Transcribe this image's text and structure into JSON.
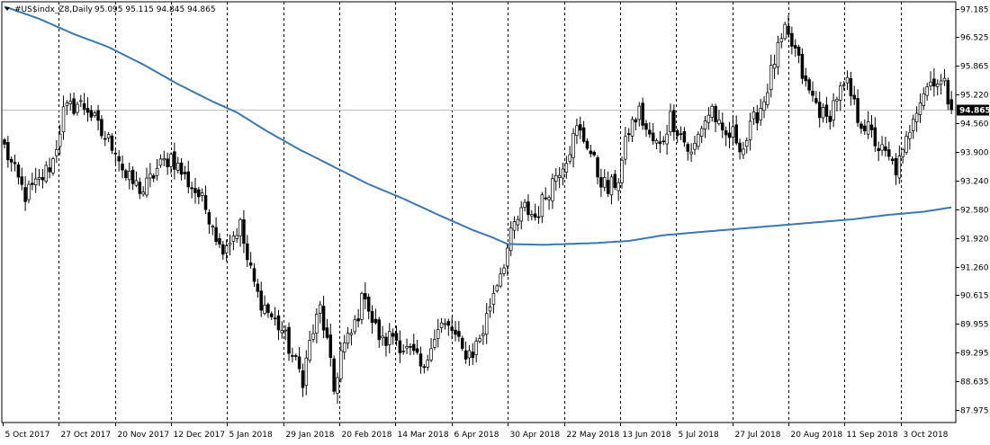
{
  "colors": {
    "background": "#ffffff",
    "axis": "#000000",
    "grid": "#000000",
    "candle": "#000000",
    "moving_average": "#3c78b4",
    "price_line": "#c0c0c0",
    "price_tag": "#000000"
  },
  "header": {
    "symbol": "#US$indx_Z8,Daily",
    "ohlc": "95.095 95.115 94.845 94.865",
    "menu_icon": "triangle-down-icon"
  },
  "chart_data": {
    "type": "candlestick",
    "ylim": [
      87.68,
      97.34
    ],
    "y_ticks": [
      "97.185",
      "96.525",
      "95.865",
      "95.220",
      "94.560",
      "93.900",
      "93.240",
      "92.580",
      "91.920",
      "91.260",
      "90.615",
      "89.955",
      "89.295",
      "88.635",
      "87.975"
    ],
    "current_price": "94.865",
    "x_ticks": [
      "5 Oct 2017",
      "27 Oct 2017",
      "20 Nov 2017",
      "12 Dec 2017",
      "5 Jan 2018",
      "29 Jan 2018",
      "20 Feb 2018",
      "14 Mar 2018",
      "6 Apr 2018",
      "30 Apr 2018",
      "22 May 2018",
      "13 Jun 2018",
      "5 Jul 2018",
      "27 Jul 2018",
      "20 Aug 2018",
      "11 Sep 2018",
      "3 Oct 2018"
    ],
    "close_anchors": [
      [
        0,
        94.0
      ],
      [
        3,
        93.4
      ],
      [
        6,
        92.9
      ],
      [
        10,
        93.2
      ],
      [
        14,
        93.7
      ],
      [
        17,
        94.8
      ],
      [
        21,
        95.0
      ],
      [
        24,
        94.9
      ],
      [
        28,
        94.3
      ],
      [
        32,
        94.0
      ],
      [
        35,
        93.3
      ],
      [
        40,
        93.0
      ],
      [
        44,
        93.5
      ],
      [
        48,
        93.8
      ],
      [
        52,
        93.3
      ],
      [
        56,
        92.9
      ],
      [
        60,
        92.3
      ],
      [
        62,
        91.7
      ],
      [
        65,
        91.9
      ],
      [
        68,
        92.2
      ],
      [
        70,
        91.4
      ],
      [
        73,
        90.6
      ],
      [
        77,
        90.1
      ],
      [
        80,
        89.8
      ],
      [
        83,
        89.2
      ],
      [
        86,
        88.7
      ],
      [
        88,
        89.5
      ],
      [
        91,
        90.3
      ],
      [
        93,
        89.5
      ],
      [
        95,
        88.4
      ],
      [
        97,
        89.3
      ],
      [
        100,
        89.7
      ],
      [
        102,
        90.2
      ],
      [
        104,
        90.7
      ],
      [
        106,
        90.0
      ],
      [
        109,
        89.5
      ],
      [
        112,
        89.7
      ],
      [
        115,
        89.4
      ],
      [
        118,
        89.2
      ],
      [
        121,
        88.8
      ],
      [
        123,
        89.6
      ],
      [
        126,
        89.9
      ],
      [
        129,
        89.8
      ],
      [
        132,
        89.3
      ],
      [
        135,
        89.3
      ],
      [
        138,
        89.8
      ],
      [
        141,
        90.7
      ],
      [
        144,
        91.4
      ],
      [
        147,
        92.2
      ],
      [
        150,
        92.6
      ],
      [
        153,
        92.4
      ],
      [
        156,
        92.9
      ],
      [
        159,
        93.4
      ],
      [
        162,
        93.8
      ],
      [
        165,
        94.4
      ],
      [
        168,
        94.1
      ],
      [
        171,
        93.4
      ],
      [
        174,
        93.0
      ],
      [
        177,
        93.3
      ],
      [
        180,
        94.4
      ],
      [
        183,
        94.8
      ],
      [
        186,
        94.2
      ],
      [
        189,
        94.0
      ],
      [
        192,
        94.7
      ],
      [
        195,
        94.3
      ],
      [
        198,
        93.8
      ],
      [
        201,
        94.5
      ],
      [
        204,
        94.9
      ],
      [
        207,
        94.2
      ],
      [
        210,
        94.3
      ],
      [
        213,
        94.0
      ],
      [
        216,
        94.6
      ],
      [
        219,
        95.1
      ],
      [
        222,
        96.0
      ],
      [
        225,
        96.6
      ],
      [
        228,
        96.2
      ],
      [
        231,
        95.4
      ],
      [
        234,
        95.0
      ],
      [
        237,
        94.6
      ],
      [
        240,
        95.2
      ],
      [
        243,
        95.4
      ],
      [
        246,
        94.7
      ],
      [
        249,
        94.4
      ],
      [
        252,
        94.0
      ],
      [
        255,
        93.7
      ],
      [
        257,
        93.5
      ],
      [
        259,
        93.8
      ],
      [
        262,
        94.8
      ],
      [
        265,
        95.3
      ],
      [
        268,
        95.6
      ],
      [
        271,
        95.4
      ],
      [
        273,
        94.865
      ]
    ],
    "moving_average": [
      [
        0,
        97.23
      ],
      [
        10,
        96.95
      ],
      [
        20,
        96.6
      ],
      [
        30,
        96.3
      ],
      [
        40,
        95.9
      ],
      [
        50,
        95.45
      ],
      [
        60,
        95.05
      ],
      [
        67,
        94.8
      ],
      [
        75,
        94.4
      ],
      [
        85,
        93.95
      ],
      [
        95,
        93.55
      ],
      [
        105,
        93.15
      ],
      [
        115,
        92.82
      ],
      [
        125,
        92.45
      ],
      [
        135,
        92.1
      ],
      [
        140,
        91.95
      ],
      [
        143,
        91.85
      ],
      [
        145,
        91.78
      ],
      [
        155,
        91.76
      ],
      [
        170,
        91.8
      ],
      [
        180,
        91.85
      ],
      [
        190,
        91.98
      ],
      [
        200,
        92.05
      ],
      [
        215,
        92.15
      ],
      [
        230,
        92.25
      ],
      [
        245,
        92.35
      ],
      [
        255,
        92.45
      ],
      [
        265,
        92.52
      ],
      [
        273,
        92.62
      ]
    ]
  }
}
